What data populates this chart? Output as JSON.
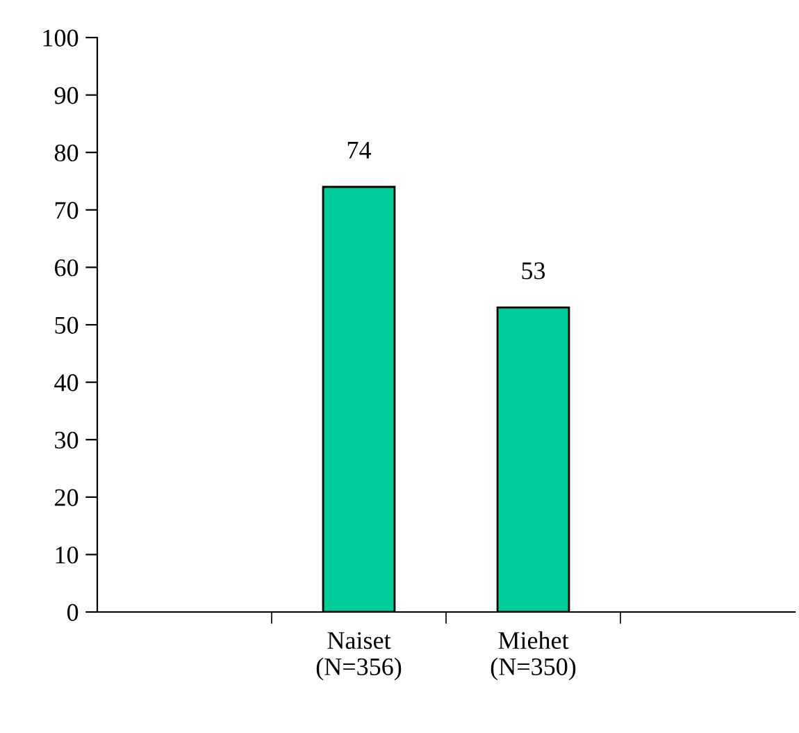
{
  "chart_data": {
    "type": "bar",
    "categories": [
      null,
      "Naiset\n(N=356)",
      "Miehet\n(N=350)",
      null
    ],
    "values": [
      null,
      74,
      53,
      null
    ],
    "color": "#00cc99",
    "ylim": [
      0,
      100
    ],
    "yticks": [
      0,
      10,
      20,
      30,
      40,
      50,
      60,
      70,
      80,
      90,
      100
    ],
    "grid": false,
    "legend": false,
    "data_labels": true
  }
}
